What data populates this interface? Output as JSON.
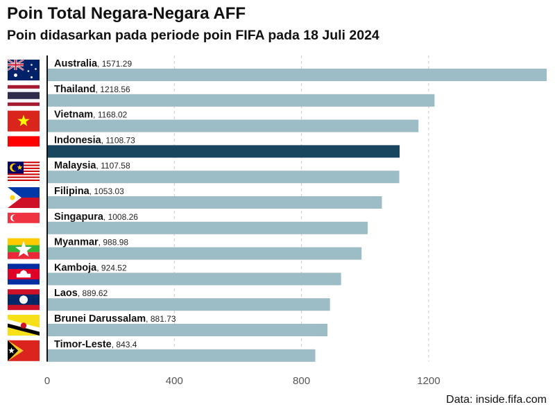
{
  "header": {
    "title": "Poin Total Negara-Negara AFF",
    "subtitle": "Poin didasarkan pada periode poin FIFA pada 18 Juli 2024"
  },
  "source": "Data: inside.fifa.com",
  "chart_data": {
    "type": "bar",
    "orientation": "horizontal",
    "title": "Poin Total Negara-Negara AFF",
    "subtitle": "Poin didasarkan pada periode poin FIFA pada 18 Juli 2024",
    "categories": [
      "Australia",
      "Thailand",
      "Vietnam",
      "Indonesia",
      "Malaysia",
      "Filipina",
      "Singapura",
      "Myanmar",
      "Kamboja",
      "Laos",
      "Brunei Darussalam",
      "Timor-Leste"
    ],
    "values": [
      1571.29,
      1218.56,
      1168.02,
      1108.73,
      1107.58,
      1053.03,
      1008.26,
      988.98,
      924.52,
      889.62,
      881.73,
      843.4
    ],
    "value_labels": [
      "1571.29",
      "1218.56",
      "1168.02",
      "1108.73",
      "1107.58",
      "1053.03",
      "1008.26",
      "988.98",
      "924.52",
      "889.62",
      "881.73",
      "843.4"
    ],
    "highlight": "Indonesia",
    "xlim": [
      0,
      1571.29
    ],
    "x_ticks": [
      0,
      400,
      800,
      1200
    ],
    "xlabel": "",
    "ylabel": "",
    "grid": "vertical dashed",
    "colors": {
      "bar": "#9dbdc6",
      "highlight": "#17465e",
      "grid": "#c9c9c9"
    },
    "flags": [
      "australia-flag",
      "thailand-flag",
      "vietnam-flag",
      "indonesia-flag",
      "malaysia-flag",
      "philippines-flag",
      "singapore-flag",
      "myanmar-flag",
      "cambodia-flag",
      "laos-flag",
      "brunei-flag",
      "timor-leste-flag"
    ]
  }
}
